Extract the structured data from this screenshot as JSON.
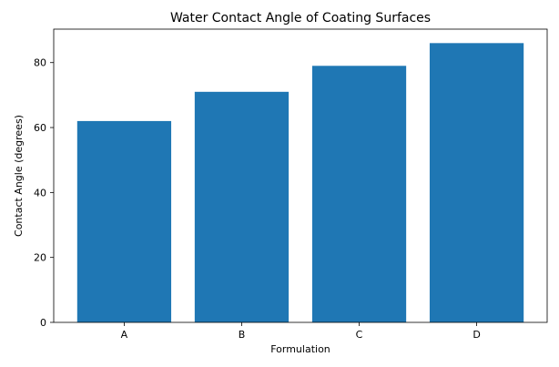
{
  "chart_data": {
    "type": "bar",
    "title": "Water Contact Angle of Coating Surfaces",
    "xlabel": "Formulation",
    "ylabel": "Contact Angle (degrees)",
    "categories": [
      "A",
      "B",
      "C",
      "D"
    ],
    "values": [
      62,
      71,
      79,
      86
    ],
    "ylim": [
      0,
      90.3
    ],
    "yticks": [
      0,
      20,
      40,
      60,
      80
    ],
    "grid": false,
    "bar_color": "#1f77b4"
  }
}
